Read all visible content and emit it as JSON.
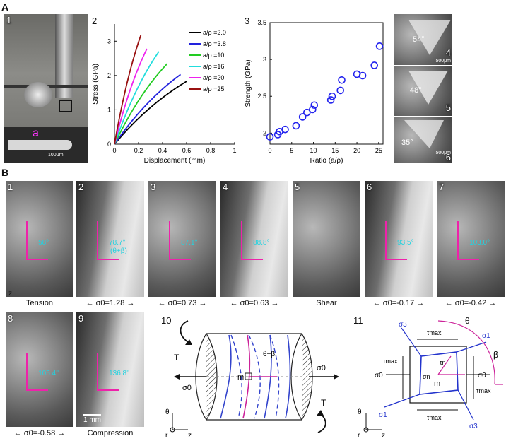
{
  "sectionA": {
    "label": "A",
    "panel1": {
      "num": "1",
      "a_label": "a",
      "scale": "100μm"
    },
    "panel2": {
      "num": "2"
    },
    "panel3": {
      "num": "3"
    },
    "fracto": [
      {
        "angle": "54°",
        "scale": "500μm",
        "num": "4"
      },
      {
        "angle": "48°",
        "scale": "",
        "num": "5"
      },
      {
        "angle": "35°",
        "scale": "500μm",
        "num": "6"
      }
    ]
  },
  "chart_data": [
    {
      "type": "line",
      "xlabel": "Displacement (mm)",
      "ylabel": "Stress (GPa)",
      "xlim": [
        0,
        1
      ],
      "ylim": [
        0,
        3.5
      ],
      "xticks": [
        "0",
        "0.2",
        "0.4",
        "0.6",
        "0.8",
        "1"
      ],
      "yticks": [
        "0",
        "1",
        "2",
        "3"
      ],
      "legend_position": "right",
      "series": [
        {
          "name": "a/ρ =2.0",
          "color": "#000000",
          "x": [
            0,
            0.6
          ],
          "y": [
            0,
            1.83
          ]
        },
        {
          "name": "a/ρ =3.8",
          "color": "#2222dd",
          "x": [
            0,
            0.55
          ],
          "y": [
            0,
            2.03
          ]
        },
        {
          "name": "a/ρ =10",
          "color": "#22cc22",
          "x": [
            0,
            0.44
          ],
          "y": [
            0,
            2.35
          ]
        },
        {
          "name": "a/ρ =16",
          "color": "#22dddd",
          "x": [
            0,
            0.37
          ],
          "y": [
            0,
            2.7
          ]
        },
        {
          "name": "a/ρ =20",
          "color": "#ee22ee",
          "x": [
            0,
            0.27
          ],
          "y": [
            0,
            2.78
          ]
        },
        {
          "name": "a/ρ =25",
          "color": "#991111",
          "x": [
            0,
            0.22
          ],
          "y": [
            0,
            3.18
          ]
        }
      ]
    },
    {
      "type": "scatter",
      "xlabel": "Ratio (a/ρ)",
      "ylabel": "Strength (GPa)",
      "xlim": [
        0,
        26
      ],
      "ylim": [
        1.85,
        3.5
      ],
      "xticks": [
        "0",
        "5",
        "10",
        "15",
        "20",
        "25"
      ],
      "yticks": [
        "2",
        "2.5",
        "3",
        "3.5"
      ],
      "color": "#2222ee",
      "points": [
        {
          "x": 0,
          "y": 1.95
        },
        {
          "x": 1.8,
          "y": 1.98
        },
        {
          "x": 2.2,
          "y": 2.02
        },
        {
          "x": 3.5,
          "y": 2.05
        },
        {
          "x": 6,
          "y": 2.1
        },
        {
          "x": 7.5,
          "y": 2.22
        },
        {
          "x": 8.5,
          "y": 2.28
        },
        {
          "x": 9.8,
          "y": 2.32
        },
        {
          "x": 10.2,
          "y": 2.38
        },
        {
          "x": 14,
          "y": 2.45
        },
        {
          "x": 14.3,
          "y": 2.5
        },
        {
          "x": 16.2,
          "y": 2.58
        },
        {
          "x": 16.5,
          "y": 2.72
        },
        {
          "x": 20,
          "y": 2.8
        },
        {
          "x": 21.3,
          "y": 2.78
        },
        {
          "x": 24,
          "y": 2.92
        },
        {
          "x": 25.2,
          "y": 3.18
        }
      ]
    }
  ],
  "sectionB": {
    "label": "B",
    "row1": [
      {
        "num": "1",
        "angle": "58°",
        "angle2": "",
        "caption": "Tension",
        "arrows": false
      },
      {
        "num": "2",
        "angle": "78.7°",
        "angle2": "(θ+β)",
        "caption": "σ0=1.28",
        "arrows": true
      },
      {
        "num": "3",
        "angle": "87.1°",
        "angle2": "",
        "caption": "σ0=0.73",
        "arrows": true
      },
      {
        "num": "4",
        "angle": "88.8°",
        "angle2": "",
        "caption": "σ0=0.63",
        "arrows": true
      },
      {
        "num": "5",
        "angle": "",
        "angle2": "",
        "caption": "Shear",
        "arrows": false
      },
      {
        "num": "6",
        "angle": "93.5°",
        "angle2": "",
        "caption": "σ0=-0.17",
        "arrows": true
      },
      {
        "num": "7",
        "angle": "103.0°",
        "angle2": "",
        "caption": "σ0=-0.42",
        "arrows": true
      }
    ],
    "row2": [
      {
        "num": "8",
        "angle": "105.4°",
        "caption": "σ0=-0.58",
        "arrows": true
      },
      {
        "num": "9",
        "angle": "136.8°",
        "caption": "Compression",
        "arrows": false,
        "scale": "1 mm"
      }
    ],
    "axis_z": "z",
    "panel10": {
      "num": "10",
      "T": "T",
      "sigma": "σ0",
      "m": "m",
      "angle": "θ+β",
      "theta": "θ",
      "r": "r",
      "z": "z"
    },
    "panel11": {
      "num": "11",
      "theta": "θ",
      "beta": "β",
      "sigma0": "σ0",
      "sigma1": "σ1",
      "sigma3": "σ3",
      "tau_max": "τmax",
      "sigma_n": "σn",
      "tau_n": "τn",
      "m": "m",
      "r": "r",
      "z": "z"
    }
  }
}
